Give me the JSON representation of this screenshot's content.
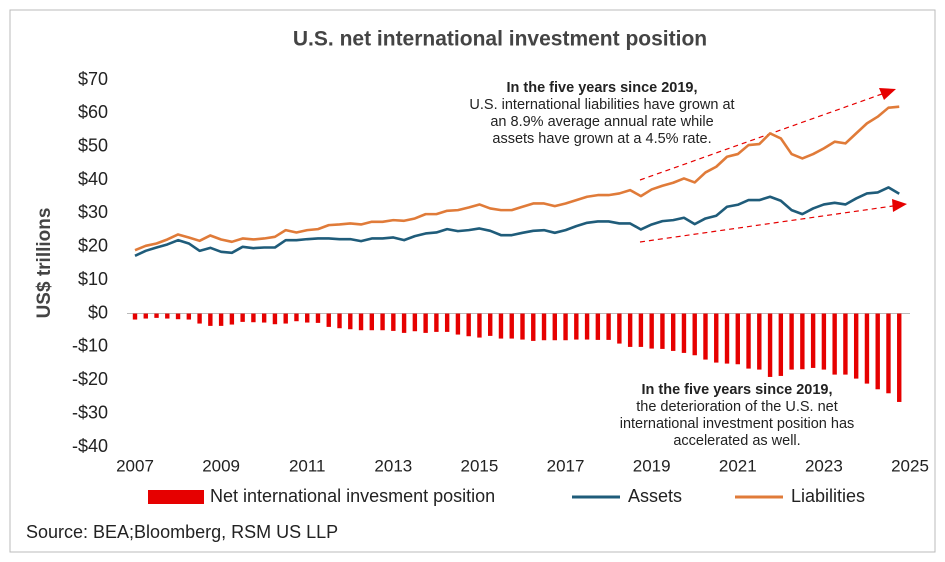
{
  "chart_data": {
    "type": "line",
    "title": "U.S. net international investment position",
    "ylabel": "US$ trillions",
    "source": "Source: BEA;Bloomberg, RSM US LLP",
    "grid": false,
    "legend": "bottom",
    "xlim": [
      2007,
      2025
    ],
    "xticks": [
      2007,
      2009,
      2011,
      2013,
      2015,
      2017,
      2019,
      2021,
      2023,
      2025
    ],
    "ylim": [
      -40,
      70
    ],
    "yticks": [
      {
        "value": 70,
        "label": "$70"
      },
      {
        "value": 60,
        "label": "$60"
      },
      {
        "value": 50,
        "label": "$50"
      },
      {
        "value": 40,
        "label": "$40"
      },
      {
        "value": 30,
        "label": "$30"
      },
      {
        "value": 20,
        "label": "$20"
      },
      {
        "value": 10,
        "label": "$10"
      },
      {
        "value": 0,
        "label": "$0"
      },
      {
        "value": -10,
        "label": "-$10"
      },
      {
        "value": -20,
        "label": "-$20"
      },
      {
        "value": -30,
        "label": "-$30"
      },
      {
        "value": -40,
        "label": "-$40"
      }
    ],
    "x": [
      2007,
      2007.25,
      2007.5,
      2007.75,
      2008,
      2008.25,
      2008.5,
      2008.75,
      2009,
      2009.25,
      2009.5,
      2009.75,
      2010,
      2010.25,
      2010.5,
      2010.75,
      2011,
      2011.25,
      2011.5,
      2011.75,
      2012,
      2012.25,
      2012.5,
      2012.75,
      2013,
      2013.25,
      2013.5,
      2013.75,
      2014,
      2014.25,
      2014.5,
      2014.75,
      2015,
      2015.25,
      2015.5,
      2015.75,
      2016,
      2016.25,
      2016.5,
      2016.75,
      2017,
      2017.25,
      2017.5,
      2017.75,
      2018,
      2018.25,
      2018.5,
      2018.75,
      2019,
      2019.25,
      2019.5,
      2019.75,
      2020,
      2020.25,
      2020.5,
      2020.75,
      2021,
      2021.25,
      2021.5,
      2021.75,
      2022,
      2022.25,
      2022.5,
      2022.75,
      2023,
      2023.25,
      2023.5,
      2023.75,
      2024,
      2024.25,
      2024.5,
      2024.75
    ],
    "series": [
      {
        "name": "Net international invesment position",
        "type": "bar",
        "color": "#e60000",
        "values": [
          -1.8,
          -1.5,
          -1.3,
          -1.5,
          -1.7,
          -1.8,
          -3.0,
          -3.7,
          -3.7,
          -3.3,
          -2.5,
          -2.6,
          -2.7,
          -3.2,
          -3.0,
          -2.3,
          -2.7,
          -2.8,
          -4.0,
          -4.4,
          -4.7,
          -5.0,
          -5.0,
          -5.0,
          -5.2,
          -5.8,
          -5.3,
          -5.8,
          -5.5,
          -5.5,
          -6.3,
          -6.8,
          -7.2,
          -6.7,
          -7.5,
          -7.5,
          -7.8,
          -8.2,
          -8.0,
          -8.0,
          -8.0,
          -7.8,
          -7.8,
          -7.9,
          -7.9,
          -9.0,
          -10.0,
          -10.0,
          -10.5,
          -10.6,
          -11.2,
          -11.8,
          -12.5,
          -13.8,
          -14.7,
          -15.0,
          -15.2,
          -16.5,
          -16.8,
          -19.0,
          -18.7,
          -16.8,
          -16.7,
          -16.3,
          -16.8,
          -18.3,
          -18.3,
          -19.5,
          -21.0,
          -22.7,
          -23.9,
          -26.5
        ]
      },
      {
        "name": "Assets",
        "type": "line",
        "color": "#1f5c7a",
        "values": [
          17.3,
          18.8,
          19.8,
          20.7,
          22.0,
          21.0,
          18.8,
          19.7,
          18.5,
          18.2,
          20.0,
          19.6,
          19.8,
          19.8,
          22.0,
          22.0,
          22.3,
          22.5,
          22.5,
          22.3,
          22.3,
          21.7,
          22.5,
          22.5,
          22.8,
          22.0,
          23.2,
          24.0,
          24.3,
          25.3,
          24.7,
          25.0,
          25.5,
          24.8,
          23.5,
          23.5,
          24.2,
          24.8,
          25.0,
          24.2,
          25.0,
          26.2,
          27.2,
          27.6,
          27.6,
          27.0,
          27.0,
          25.2,
          26.7,
          27.7,
          28.0,
          28.7,
          26.8,
          28.5,
          29.3,
          32.0,
          32.6,
          34.0,
          34.0,
          35.0,
          33.8,
          31.0,
          29.8,
          31.5,
          32.7,
          33.2,
          32.7,
          34.5,
          36.0,
          36.3,
          37.8,
          35.9
        ]
      },
      {
        "name": "Liabilities",
        "type": "line",
        "color": "#e07b39",
        "values": [
          19.0,
          20.3,
          21.0,
          22.2,
          23.7,
          22.8,
          21.8,
          23.4,
          22.2,
          21.5,
          22.5,
          22.2,
          22.5,
          23.0,
          25.0,
          24.3,
          25.0,
          25.3,
          26.5,
          26.7,
          27.0,
          26.7,
          27.5,
          27.5,
          28.0,
          27.8,
          28.5,
          29.8,
          29.8,
          30.8,
          31.0,
          31.8,
          32.7,
          31.5,
          31.0,
          31.0,
          32.0,
          33.0,
          33.0,
          32.2,
          33.0,
          34.0,
          35.0,
          35.5,
          35.5,
          36.0,
          37.0,
          35.2,
          37.2,
          38.3,
          39.2,
          40.5,
          39.3,
          42.3,
          44.0,
          47.0,
          47.8,
          50.5,
          50.8,
          54.0,
          52.5,
          47.8,
          46.5,
          47.8,
          49.5,
          51.5,
          51.0,
          54.0,
          57.0,
          59.0,
          61.7,
          62.0
        ]
      }
    ],
    "annotations": [
      {
        "lines": [
          "In the five years since 2019,",
          "U.S. international liabilities have grown at",
          "an 8.9% average annual rate while",
          "assets have grown at a 4.5% rate."
        ]
      },
      {
        "lines": [
          "In the five years since 2019,",
          "the deterioration of the U.S. net",
          "international investment position has",
          "accelerated as well."
        ]
      }
    ]
  }
}
